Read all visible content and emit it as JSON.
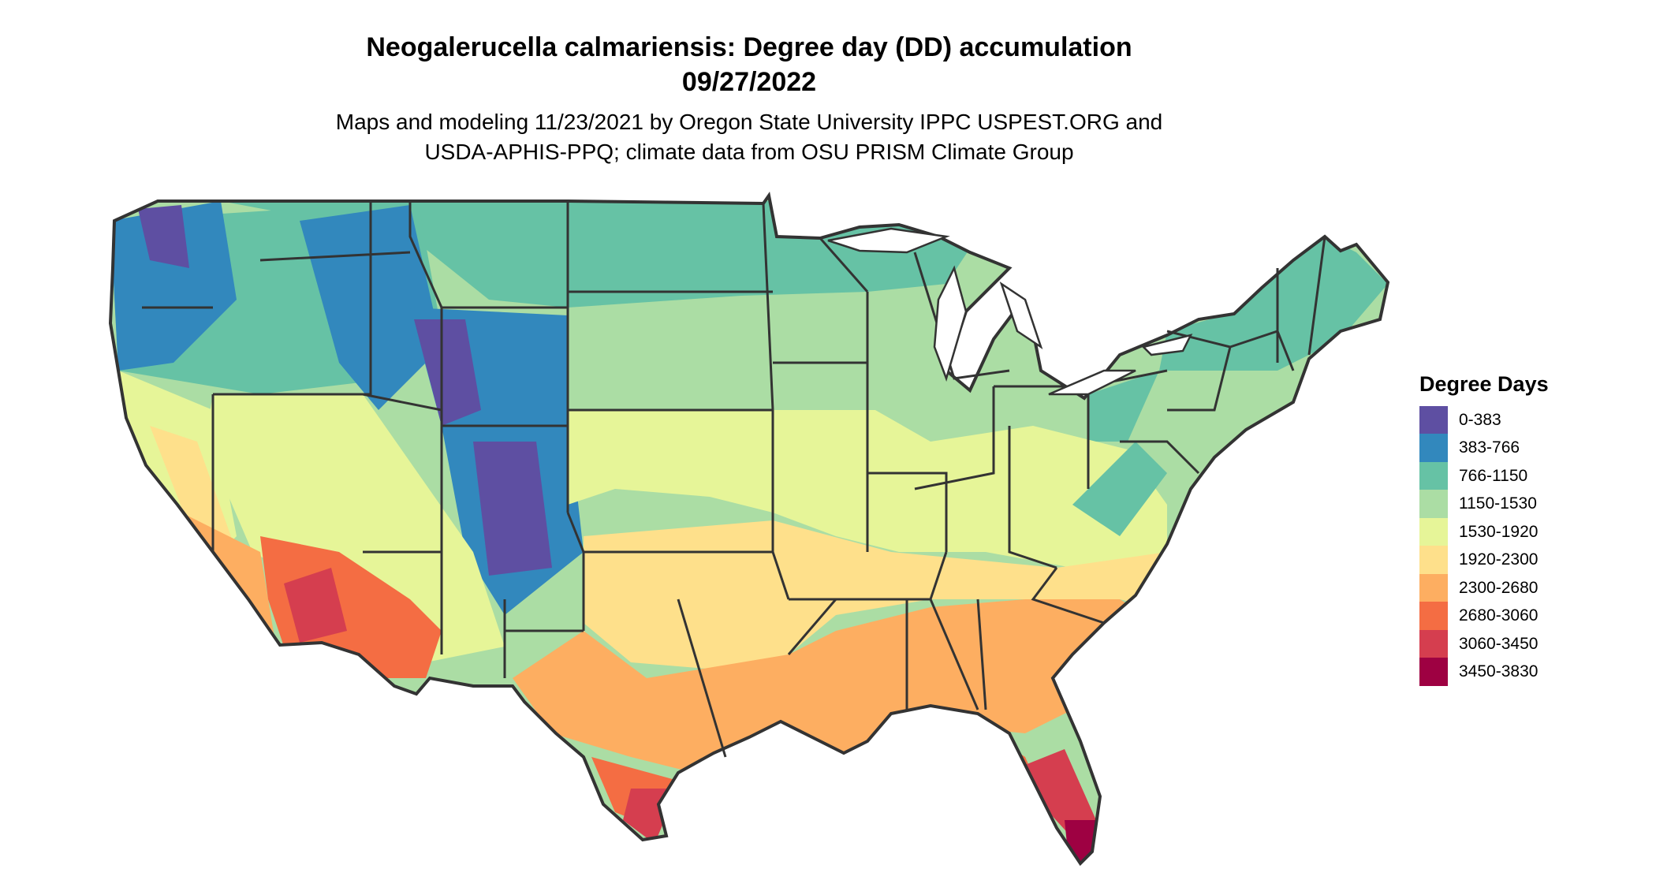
{
  "title_line1": "Neogalerucella calmariensis: Degree day (DD) accumulation",
  "title_line2": "09/27/2022",
  "subtitle_line1": "Maps and modeling 11/23/2021 by Oregon State University IPPC USPEST.ORG and",
  "subtitle_line2": "USDA-APHIS-PPQ; climate data from OSU PRISM Climate Group",
  "legend": {
    "title": "Degree Days",
    "items": [
      {
        "label": "0-383",
        "color": "#5e4fa2"
      },
      {
        "label": "383-766",
        "color": "#3288bd"
      },
      {
        "label": "766-1150",
        "color": "#66c2a5"
      },
      {
        "label": "1150-1530",
        "color": "#abdda4"
      },
      {
        "label": "1530-1920",
        "color": "#e6f598"
      },
      {
        "label": "1920-2300",
        "color": "#fee08b"
      },
      {
        "label": "2300-2680",
        "color": "#fdae61"
      },
      {
        "label": "2680-3060",
        "color": "#f46d43"
      },
      {
        "label": "3060-3450",
        "color": "#d53e4f"
      },
      {
        "label": "3450-3830",
        "color": "#9e0142"
      }
    ]
  }
}
